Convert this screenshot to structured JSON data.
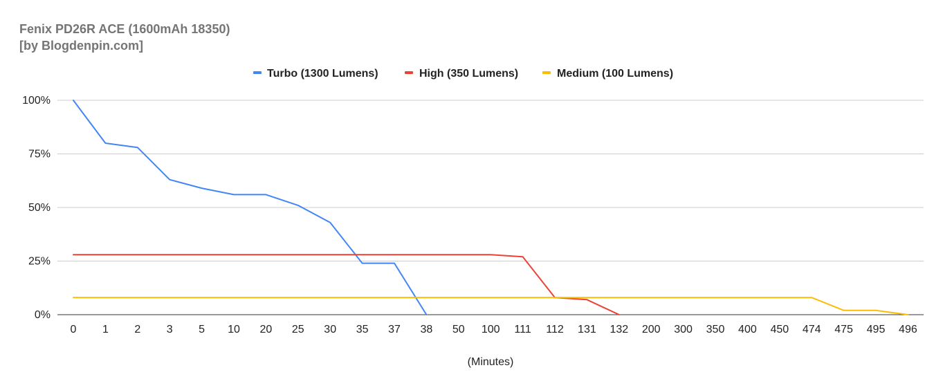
{
  "chart_data": {
    "type": "line",
    "title_line1": "Fenix PD26R ACE (1600mAh 18350)",
    "title_line2": "[by Blogdenpin.com]",
    "xlabel": "(Minutes)",
    "ylabel": "",
    "categories": [
      "0",
      "1",
      "2",
      "3",
      "5",
      "10",
      "20",
      "25",
      "30",
      "35",
      "37",
      "38",
      "50",
      "100",
      "111",
      "112",
      "131",
      "132",
      "200",
      "300",
      "350",
      "400",
      "450",
      "474",
      "475",
      "495",
      "496"
    ],
    "y_ticks": [
      "0%",
      "25%",
      "50%",
      "75%",
      "100%"
    ],
    "ylim": [
      0,
      100
    ],
    "grid": true,
    "legend_position": "top",
    "series": [
      {
        "name": "Turbo (1300 Lumens)",
        "color": "#4285f4",
        "values": [
          100,
          80,
          78,
          63,
          59,
          56,
          56,
          51,
          43,
          24,
          24,
          0,
          null,
          null,
          null,
          null,
          null,
          null,
          null,
          null,
          null,
          null,
          null,
          null,
          null,
          null,
          null
        ]
      },
      {
        "name": "High (350 Lumens)",
        "color": "#ea4335",
        "values": [
          28,
          28,
          28,
          28,
          28,
          28,
          28,
          28,
          28,
          28,
          28,
          28,
          28,
          28,
          27,
          8,
          7,
          0,
          null,
          null,
          null,
          null,
          null,
          null,
          null,
          null,
          null
        ]
      },
      {
        "name": "Medium (100 Lumens)",
        "color": "#fbbc04",
        "values": [
          8,
          8,
          8,
          8,
          8,
          8,
          8,
          8,
          8,
          8,
          8,
          8,
          8,
          8,
          8,
          8,
          8,
          8,
          8,
          8,
          8,
          8,
          8,
          8,
          2,
          2,
          0
        ]
      }
    ]
  }
}
